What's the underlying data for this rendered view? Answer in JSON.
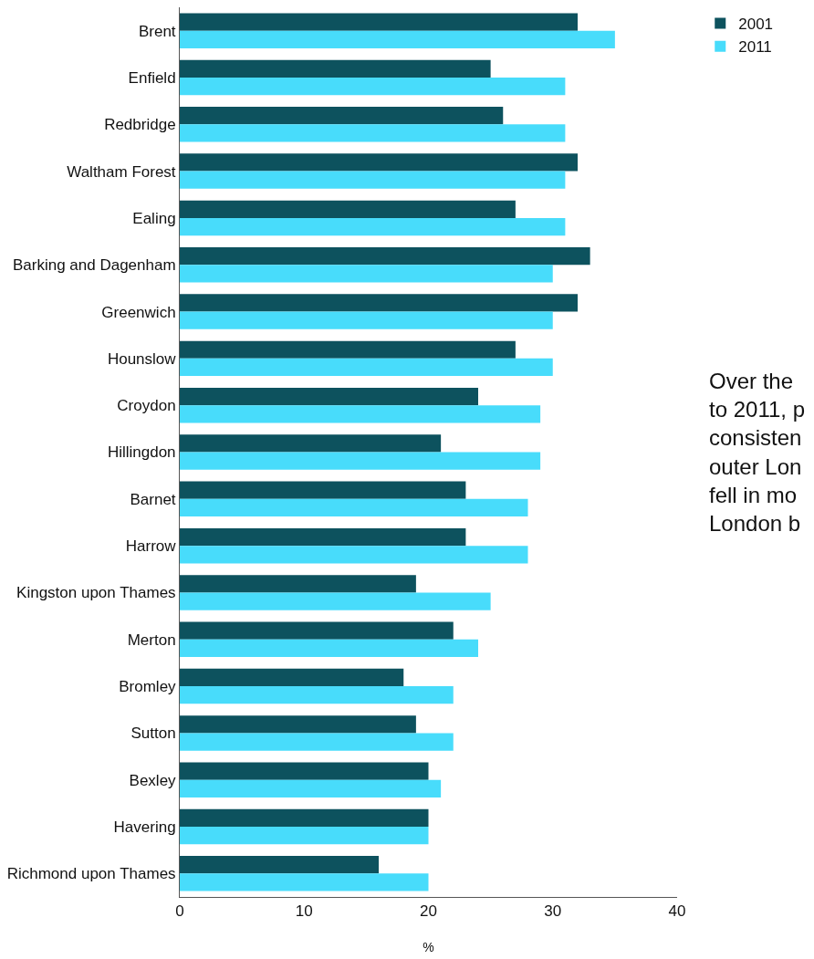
{
  "chart_data": {
    "type": "bar",
    "orientation": "horizontal",
    "xlabel": "%",
    "categories": [
      "Brent",
      "Enfield",
      "Redbridge",
      "Waltham Forest",
      "Ealing",
      "Barking and Dagenham",
      "Greenwich",
      "Hounslow",
      "Croydon",
      "Hillingdon",
      "Barnet",
      "Harrow",
      "Kingston upon Thames",
      "Merton",
      "Bromley",
      "Sutton",
      "Bexley",
      "Havering",
      "Richmond upon Thames"
    ],
    "series": [
      {
        "name": "2001",
        "color": "#0d525e",
        "values": [
          32,
          25,
          26,
          32,
          27,
          33,
          32,
          27,
          24,
          21,
          23,
          23,
          19,
          22,
          18,
          19,
          20,
          20,
          16
        ]
      },
      {
        "name": "2011",
        "color": "#48dcfb",
        "values": [
          35,
          31,
          31,
          31,
          31,
          30,
          30,
          30,
          29,
          29,
          28,
          28,
          25,
          24,
          22,
          22,
          21,
          20,
          20
        ]
      }
    ],
    "xlim": [
      0,
      40
    ],
    "xticks": [
      0,
      10,
      20,
      30,
      40
    ],
    "legend": "top right",
    "annotations": [
      "Over the\nto 2011, p\nconsisten\nouter Lon\nfell in mo\nLondon b"
    ]
  }
}
